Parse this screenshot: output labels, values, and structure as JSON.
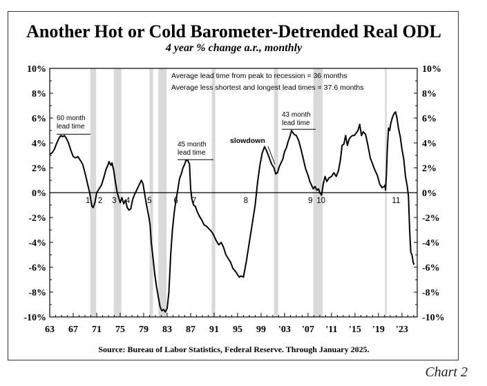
{
  "title": "Another Hot or Cold Barometer-Detrended Real ODL",
  "subtitle": "4 year % change a.r., monthly",
  "source": "Source: Bureau of Labor Statistics, Federal Reserve. Through January 2025.",
  "chart_label": "Chart 2",
  "chart_data": {
    "type": "line",
    "title": "Another Hot or Cold Barometer-Detrended Real ODL",
    "subtitle": "4 year % change a.r., monthly",
    "xlim": [
      1963,
      2025.6
    ],
    "ylim": [
      -10,
      10
    ],
    "y_ticks": [
      -10,
      -8,
      -6,
      -4,
      -2,
      0,
      2,
      4,
      6,
      8,
      10
    ],
    "y_tick_labels": [
      "-10%",
      "-8%",
      "-6%",
      "-4%",
      "-2%",
      "0%",
      "2%",
      "4%",
      "6%",
      "8%",
      "10%"
    ],
    "x_ticks": [
      1963,
      1967,
      1971,
      1975,
      1979,
      1983,
      1987,
      1991,
      1995,
      1999,
      2003,
      2007,
      2011,
      2015,
      2019,
      2023
    ],
    "x_tick_labels": [
      "63",
      "67",
      "71",
      "75",
      "79",
      "83",
      "87",
      "91",
      "95",
      "99",
      "'03",
      "'07",
      "'11",
      "'15",
      "'19",
      "'23"
    ],
    "colors": {
      "line": "#000000",
      "recession": "#d9d9d9"
    },
    "recessions": [
      [
        1969.9,
        1970.9
      ],
      [
        1973.9,
        1975.2
      ],
      [
        1980.0,
        1980.6
      ],
      [
        1981.5,
        1982.9
      ],
      [
        1990.6,
        1991.2
      ],
      [
        2001.2,
        2001.9
      ],
      [
        2007.9,
        2009.5
      ],
      [
        2020.1,
        2020.4
      ]
    ],
    "series": [
      {
        "x": [
          1963.0,
          1963.4,
          1963.8,
          1964.2,
          1964.6,
          1964.9,
          1965.2,
          1965.5,
          1965.8,
          1966.2,
          1966.6,
          1967.0,
          1967.4,
          1967.8,
          1968.2,
          1968.6,
          1968.9,
          1969.2,
          1969.5,
          1969.8,
          1970.0,
          1970.2,
          1970.4,
          1970.7,
          1971.0,
          1971.4,
          1971.8,
          1972.2,
          1972.6,
          1972.9,
          1973.1,
          1973.4,
          1973.6,
          1973.9,
          1974.2,
          1974.5,
          1974.8,
          1975.0,
          1975.3,
          1975.6,
          1975.9,
          1976.2,
          1976.5,
          1976.8,
          1977.1,
          1977.4,
          1977.8,
          1978.2,
          1978.6,
          1978.9,
          1979.2,
          1979.5,
          1979.7,
          1979.9,
          1980.1,
          1980.3,
          1980.6,
          1980.9,
          1981.2,
          1981.5,
          1981.8,
          1982.1,
          1982.4,
          1982.7,
          1983.0,
          1983.3,
          1983.6,
          1983.9,
          1984.2,
          1984.5,
          1984.8,
          1985.1,
          1985.4,
          1985.7,
          1986.0,
          1986.2,
          1986.5,
          1986.8,
          1987.0,
          1987.2,
          1987.5,
          1987.8,
          1988.1,
          1988.5,
          1988.9,
          1989.3,
          1989.7,
          1990.1,
          1990.5,
          1990.8,
          1991.1,
          1991.4,
          1991.8,
          1992.2,
          1992.6,
          1993.0,
          1993.4,
          1993.8,
          1994.2,
          1994.6,
          1995.0,
          1995.3,
          1995.6,
          1996.0,
          1996.5,
          1997.0,
          1997.5,
          1998.0,
          1998.4,
          1998.8,
          1999.2,
          1999.6,
          2000.0,
          2000.4,
          2000.8,
          2001.2,
          2001.5,
          2001.8,
          2002.1,
          2002.4,
          2002.7,
          2003.0,
          2003.3,
          2003.6,
          2003.9,
          2004.2,
          2004.6,
          2005.0,
          2005.4,
          2005.8,
          2006.2,
          2006.6,
          2007.0,
          2007.3,
          2007.6,
          2007.9,
          2008.2,
          2008.5,
          2008.8,
          2009.0,
          2009.3,
          2009.6,
          2009.9,
          2010.2,
          2010.6,
          2011.0,
          2011.4,
          2011.8,
          2012.2,
          2012.5,
          2012.8,
          2013.1,
          2013.4,
          2013.7,
          2014.0,
          2014.3,
          2014.6,
          2014.9,
          2015.2,
          2015.5,
          2015.8,
          2016.1,
          2016.4,
          2016.8,
          2017.2,
          2017.6,
          2018.0,
          2018.4,
          2018.8,
          2019.2,
          2019.6,
          2020.0,
          2020.1,
          2020.2,
          2020.35,
          2020.5,
          2020.7,
          2020.9,
          2021.1,
          2021.4,
          2021.7,
          2021.9,
          2022.1,
          2022.4,
          2022.7,
          2023.0,
          2023.3,
          2023.6,
          2023.9,
          2024.1,
          2024.3,
          2024.5,
          2024.7,
          2024.9,
          2025.05
        ],
        "y": [
          3.1,
          3.2,
          3.5,
          4.0,
          4.4,
          4.6,
          4.5,
          4.6,
          4.4,
          4.0,
          3.4,
          2.9,
          2.8,
          2.9,
          2.6,
          2.3,
          1.8,
          1.2,
          0.6,
          0.0,
          -0.6,
          -1.1,
          -1.2,
          -0.8,
          0.0,
          0.3,
          0.6,
          1.2,
          1.9,
          2.2,
          2.5,
          2.2,
          2.4,
          1.8,
          0.8,
          0.0,
          -0.5,
          -0.8,
          -0.4,
          -0.9,
          -0.6,
          -1.2,
          -1.4,
          -1.3,
          -0.6,
          -0.2,
          0.2,
          0.6,
          1.0,
          0.7,
          -0.2,
          -1.0,
          -1.5,
          -2.0,
          -2.6,
          -4.0,
          -5.3,
          -6.6,
          -7.6,
          -8.4,
          -9.2,
          -9.5,
          -9.4,
          -9.6,
          -9.3,
          -8.0,
          -5.0,
          -3.0,
          -1.6,
          -0.6,
          0.2,
          1.1,
          1.5,
          2.0,
          2.3,
          2.6,
          2.6,
          2.3,
          0.3,
          -0.5,
          -1.0,
          -1.1,
          -1.5,
          -1.9,
          -2.2,
          -2.6,
          -2.7,
          -2.9,
          -3.1,
          -3.3,
          -3.6,
          -3.9,
          -4.2,
          -4.0,
          -4.4,
          -5.0,
          -5.3,
          -5.6,
          -6.1,
          -6.3,
          -6.6,
          -6.8,
          -6.7,
          -6.8,
          -5.5,
          -4.0,
          -2.5,
          -1.0,
          0.8,
          2.2,
          3.2,
          3.7,
          3.3,
          2.8,
          2.3,
          2.0,
          1.5,
          1.6,
          2.1,
          2.4,
          2.7,
          3.3,
          3.6,
          4.1,
          4.5,
          5.0,
          4.7,
          4.6,
          4.2,
          3.5,
          2.7,
          1.9,
          1.4,
          0.9,
          0.6,
          0.3,
          0.5,
          0.2,
          0.3,
          0.0,
          -0.2,
          0.7,
          1.3,
          0.9,
          1.2,
          1.3,
          1.6,
          1.3,
          1.8,
          2.6,
          3.8,
          3.9,
          4.6,
          3.8,
          4.3,
          4.5,
          4.6,
          4.6,
          4.8,
          5.0,
          5.5,
          4.6,
          4.9,
          4.7,
          3.8,
          2.8,
          2.3,
          1.8,
          1.4,
          0.7,
          0.4,
          0.5,
          0.6,
          0.2,
          1.5,
          3.5,
          5.2,
          5.0,
          5.6,
          6.1,
          6.4,
          6.5,
          6.1,
          5.2,
          4.5,
          3.5,
          2.7,
          1.3,
          0.5,
          -0.3,
          -3.0,
          -4.8,
          -5.0,
          -5.6,
          -5.8
        ]
      }
    ],
    "annotations": {
      "lead_avg": "Average lead time from peak to recession = 36 months",
      "lead_trimmed": "Average less shortest and longest lead times = 37.6 months",
      "lead60_line1": "60 month",
      "lead60_line2": "lead time",
      "lead45_line1": "45 month",
      "lead45_line2": "lead time",
      "lead43_line1": "43 month",
      "lead43_line2": "lead time",
      "slowdown": "slowdown"
    },
    "recession_numbers": [
      "1",
      "2",
      "3",
      "4",
      "5",
      "6",
      "7",
      "8",
      "9",
      "10",
      "11"
    ],
    "recession_number_x": [
      1969.5,
      1971.6,
      1974.0,
      1976.3,
      1980.0,
      1984.5,
      1987.6,
      1996.4,
      2007.4,
      2009.2,
      2022.0
    ]
  }
}
